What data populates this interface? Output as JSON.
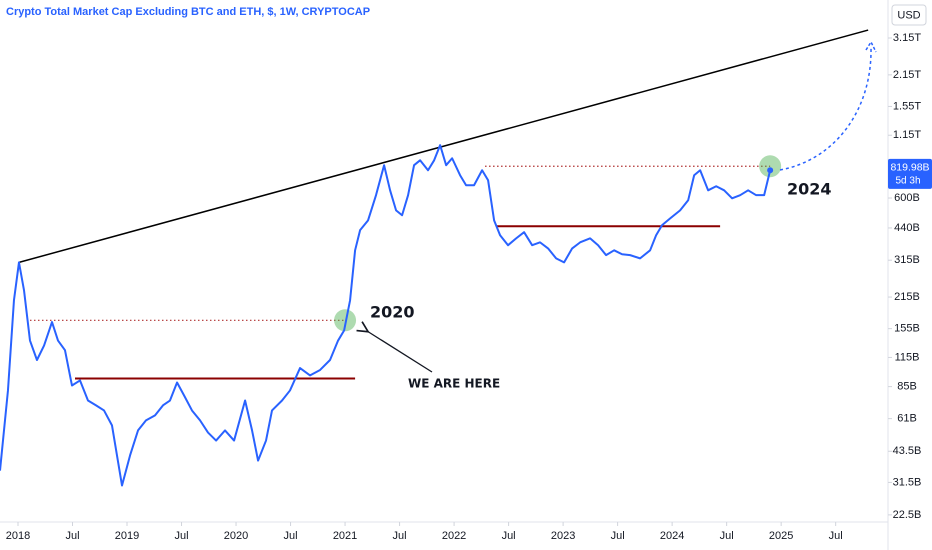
{
  "chart_data": {
    "type": "line",
    "title": "Crypto Total Market Cap Excluding BTC and ETH, $, 1W, CRYPTOCAP",
    "currency": "USD",
    "log_scale": true,
    "grid": false,
    "color": "#2962ff",
    "x": [
      2017.835,
      2017.908,
      2017.963,
      2018.009,
      2018.055,
      2018.11,
      2018.174,
      2018.239,
      2018.312,
      2018.367,
      2018.431,
      2018.495,
      2018.569,
      2018.642,
      2018.716,
      2018.789,
      2018.862,
      2018.954,
      2019.028,
      2019.101,
      2019.174,
      2019.257,
      2019.33,
      2019.394,
      2019.459,
      2019.523,
      2019.596,
      2019.67,
      2019.743,
      2019.817,
      2019.899,
      2019.982,
      2020.083,
      2020.147,
      2020.202,
      2020.275,
      2020.33,
      2020.422,
      2020.495,
      2020.587,
      2020.679,
      2020.771,
      2020.862,
      2020.936,
      2020.991,
      2021.046,
      2021.092,
      2021.138,
      2021.211,
      2021.284,
      2021.358,
      2021.413,
      2021.468,
      2021.523,
      2021.578,
      2021.633,
      2021.688,
      2021.761,
      2021.817,
      2021.872,
      2021.927,
      2021.982,
      2022.055,
      2022.11,
      2022.183,
      2022.257,
      2022.312,
      2022.367,
      2022.422,
      2022.495,
      2022.569,
      2022.642,
      2022.716,
      2022.789,
      2022.862,
      2022.936,
      2023.009,
      2023.083,
      2023.156,
      2023.248,
      2023.321,
      2023.394,
      2023.468,
      2023.541,
      2023.615,
      2023.706,
      2023.798,
      2023.853,
      2023.908,
      2023.982,
      2024.073,
      2024.147,
      2024.202,
      2024.257,
      2024.33,
      2024.404,
      2024.477,
      2024.55,
      2024.624,
      2024.697,
      2024.771,
      2024.844,
      2024.899
    ],
    "values": [
      35.6,
      81.7,
      208,
      308,
      231,
      137,
      112,
      130,
      166,
      137,
      124,
      86,
      90.6,
      73.6,
      70,
      66.4,
      56.9,
      30.5,
      41.7,
      54,
      59.9,
      63.1,
      70,
      73.6,
      88.7,
      77.6,
      66.4,
      59.9,
      52.8,
      48.6,
      54,
      48.6,
      73.6,
      54,
      39.5,
      48.6,
      66.4,
      73.6,
      81.7,
      103,
      95.5,
      101,
      112,
      137,
      152,
      208,
      349,
      430,
      476,
      618,
      843,
      650,
      528,
      502,
      618,
      843,
      887,
      800,
      887,
      1038,
      843,
      906,
      760,
      685,
      685,
      800,
      721,
      476,
      408,
      368,
      395,
      421,
      368,
      379,
      356,
      321,
      308,
      356,
      379,
      395,
      368,
      332,
      349,
      335,
      332,
      321,
      349,
      408,
      453,
      486,
      528,
      586,
      760,
      800,
      650,
      678,
      650,
      598,
      618,
      650,
      618,
      618,
      800
    ],
    "xlim": [
      2017.835,
      2025.98
    ],
    "xticks": [
      2018,
      {
        "value": 2018.5,
        "label": "Jul"
      },
      2019,
      {
        "value": 2019.5,
        "label": "Jul"
      },
      2020,
      {
        "value": 2020.5,
        "label": "Jul"
      },
      2021,
      {
        "value": 2021.5,
        "label": "Jul"
      },
      2022,
      {
        "value": 2022.5,
        "label": "Jul"
      },
      2023,
      {
        "value": 2023.5,
        "label": "Jul"
      },
      2024,
      {
        "value": 2024.5,
        "label": "Jul"
      },
      2025,
      {
        "value": 2025.5,
        "label": "Jul"
      }
    ],
    "ylim": [
      20.9,
      4670
    ],
    "yticks": [
      {
        "value": 3150,
        "label": "3.15T"
      },
      {
        "value": 2150,
        "label": "2.15T"
      },
      {
        "value": 1550,
        "label": "1.55T"
      },
      {
        "value": 1150,
        "label": "1.15T"
      },
      {
        "value": 600,
        "label": "600B"
      },
      {
        "value": 440,
        "label": "440B"
      },
      {
        "value": 315,
        "label": "315B"
      },
      {
        "value": 215,
        "label": "215B"
      },
      {
        "value": 155,
        "label": "155B"
      },
      {
        "value": 115,
        "label": "115B"
      },
      {
        "value": 85,
        "label": "85B"
      },
      {
        "value": 61,
        "label": "61B"
      },
      {
        "value": 43.5,
        "label": "43.5B"
      },
      {
        "value": 31.5,
        "label": "31.5B"
      },
      {
        "value": 22.5,
        "label": "22.5B"
      }
    ],
    "last_price": {
      "value": 819.98,
      "label": "819.98B"
    },
    "countdown": "5d 3h",
    "trendline": {
      "color": "#000000",
      "x": [
        2018.009,
        2025.798
      ],
      "values": [
        308,
        3420
      ]
    },
    "support_lines": [
      {
        "color": "#8b0000",
        "x": [
          2018.523,
          2021.092
        ],
        "value": 92.5
      },
      {
        "color": "#8b0000",
        "x": [
          2022.394,
          2024.44
        ],
        "value": 448
      }
    ],
    "dotted_levels": [
      {
        "color": "#b03030",
        "x": [
          2018.11,
          2021.0
        ],
        "value": 169
      },
      {
        "color": "#b03030",
        "x": [
          2022.284,
          2024.899
        ],
        "value": 834
      }
    ],
    "highlights": [
      {
        "x": 2021.0,
        "value": 169,
        "label": "2020"
      },
      {
        "x": 2024.899,
        "value": 834,
        "label": "2024"
      }
    ],
    "callout": "WE ARE HERE"
  }
}
